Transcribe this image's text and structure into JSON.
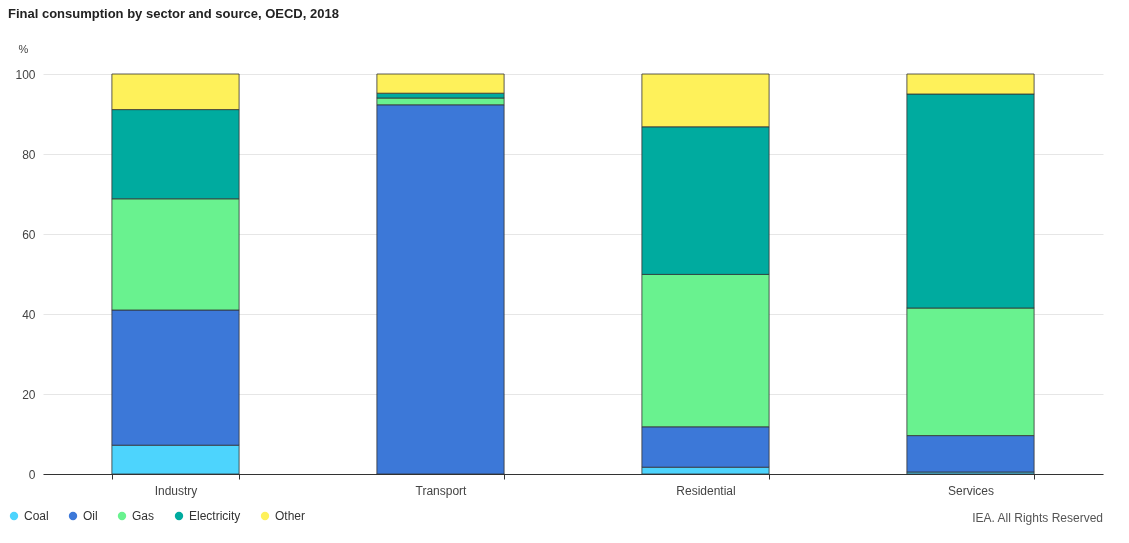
{
  "chart_data": {
    "type": "bar",
    "title": "Final consumption by sector and source, OECD, 2018",
    "ylabel": "%",
    "categories": [
      "Industry",
      "Transport",
      "Residential",
      "Services"
    ],
    "stacked": true,
    "series": [
      {
        "name": "Coal",
        "color": "#4dd4fd",
        "values": [
          7.2,
          0,
          1.7,
          0.5
        ]
      },
      {
        "name": "Oil",
        "color": "#3c78d8",
        "values": [
          33.8,
          92.3,
          10.1,
          9.1
        ]
      },
      {
        "name": "Gas",
        "color": "#69f28f",
        "values": [
          27.8,
          1.7,
          38.1,
          31.9
        ]
      },
      {
        "name": "Electricity",
        "color": "#00ab9f",
        "values": [
          22.3,
          1.2,
          36.9,
          53.5
        ]
      },
      {
        "name": "Other",
        "color": "#fef15a",
        "values": [
          8.9,
          4.8,
          13.2,
          5.0
        ]
      }
    ],
    "ylim": [
      0,
      100
    ],
    "yticks": [
      0,
      20,
      40,
      60,
      80,
      100
    ],
    "grid": "y",
    "legend": "bottom left",
    "annotations": [
      "IEA. All Rights Reserved"
    ]
  }
}
